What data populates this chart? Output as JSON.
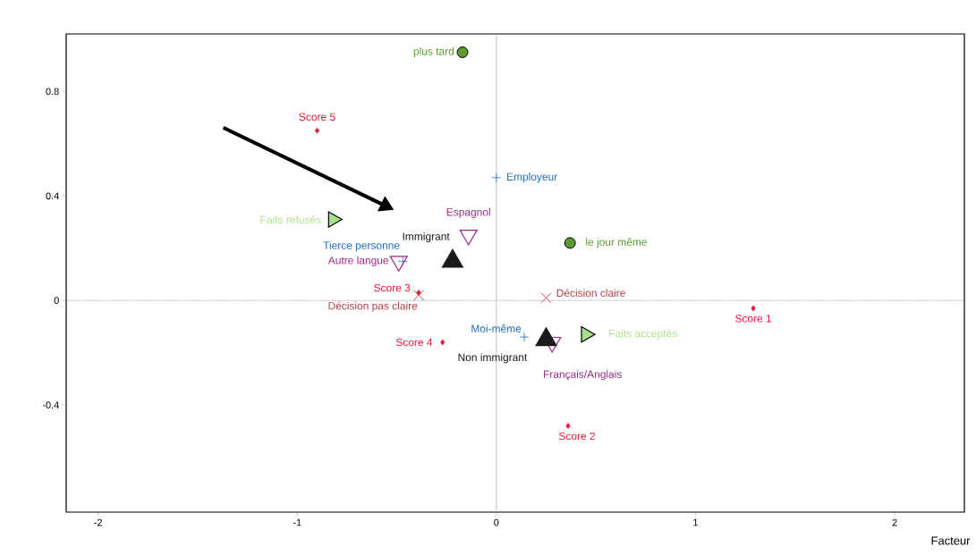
{
  "chart_data": {
    "type": "scatter",
    "xlabel": "Facteur",
    "xlim": [
      -2.16,
      2.35
    ],
    "ylim": [
      -0.81,
      1.02
    ],
    "xticks": [
      -2,
      -1,
      0,
      1,
      2
    ],
    "yticks": [
      -0.4,
      0,
      0.4,
      0.8
    ],
    "ref_lines": [
      {
        "axis": "y",
        "value": 0,
        "color": "#555555",
        "line_style": "dotted"
      },
      {
        "axis": "x",
        "value": 0,
        "color": "#aaaaaa",
        "line_style": "solid"
      }
    ],
    "series": [
      {
        "name": "Score 5",
        "color": "#e8173a",
        "marker": "diamond",
        "x": [
          -0.9
        ],
        "values": [
          0.65
        ]
      },
      {
        "name": "Score 3",
        "color": "#e8173a",
        "marker": "diamond",
        "x": [
          -0.39
        ],
        "values": [
          0.03
        ]
      },
      {
        "name": "Score 4",
        "color": "#e8173a",
        "marker": "diamond",
        "x": [
          -0.27
        ],
        "values": [
          -0.16
        ]
      },
      {
        "name": "Score 1",
        "color": "#e8173a",
        "marker": "diamond",
        "x": [
          1.29
        ],
        "values": [
          -0.03
        ]
      },
      {
        "name": "Score 2",
        "color": "#e8173a",
        "marker": "diamond",
        "x": [
          0.36
        ],
        "values": [
          -0.48
        ]
      },
      {
        "name": "Décision pas claire",
        "color": "#b0404a",
        "marker": "cross",
        "x": [
          -0.39
        ],
        "values": [
          0.02
        ]
      },
      {
        "name": "Décision claire",
        "color": "#b0404a",
        "marker": "cross",
        "x": [
          0.25
        ],
        "values": [
          0.01
        ]
      },
      {
        "name": "Employeur",
        "color": "#1f6fc0",
        "marker": "plus",
        "x": [
          0.0
        ],
        "values": [
          0.47
        ]
      },
      {
        "name": "Tierce personne",
        "color": "#1f6fc0",
        "marker": "plus",
        "x": [
          -0.47
        ],
        "values": [
          0.15
        ]
      },
      {
        "name": "Moi-même",
        "color": "#1f6fc0",
        "marker": "plus",
        "x": [
          0.14
        ],
        "values": [
          -0.14
        ]
      },
      {
        "name": "Espagnol",
        "color": "#9b2a8a",
        "marker": "triangle-down",
        "x": [
          -0.14
        ],
        "values": [
          0.25
        ]
      },
      {
        "name": "Autre langue",
        "color": "#9b2a8a",
        "marker": "triangle-down",
        "x": [
          -0.49
        ],
        "values": [
          0.15
        ]
      },
      {
        "name": "Français/Anglais",
        "color": "#9b2a8a",
        "marker": "triangle-down",
        "x": [
          0.28
        ],
        "values": [
          -0.16
        ]
      },
      {
        "name": "Immigrant",
        "color": "#1a1a1a",
        "marker": "triangle",
        "x": [
          -0.22
        ],
        "values": [
          0.15
        ]
      },
      {
        "name": "Non immigrant",
        "color": "#1a1a1a",
        "marker": "triangle",
        "x": [
          0.25
        ],
        "values": [
          -0.15
        ]
      },
      {
        "name": "Faits refusés",
        "color": "#a8e08a",
        "marker": "triangle-right",
        "x": [
          -0.82
        ],
        "values": [
          0.31
        ]
      },
      {
        "name": "Faits acceptés",
        "color": "#a8e08a",
        "marker": "triangle-right",
        "x": [
          0.45
        ],
        "values": [
          -0.13
        ]
      },
      {
        "name": "plus tard",
        "color": "#5a9a30",
        "marker": "circle",
        "x": [
          -0.17
        ],
        "values": [
          0.95
        ]
      },
      {
        "name": "le jour même",
        "color": "#5a9a30",
        "marker": "circle",
        "x": [
          0.37
        ],
        "values": [
          0.22
        ]
      }
    ]
  }
}
